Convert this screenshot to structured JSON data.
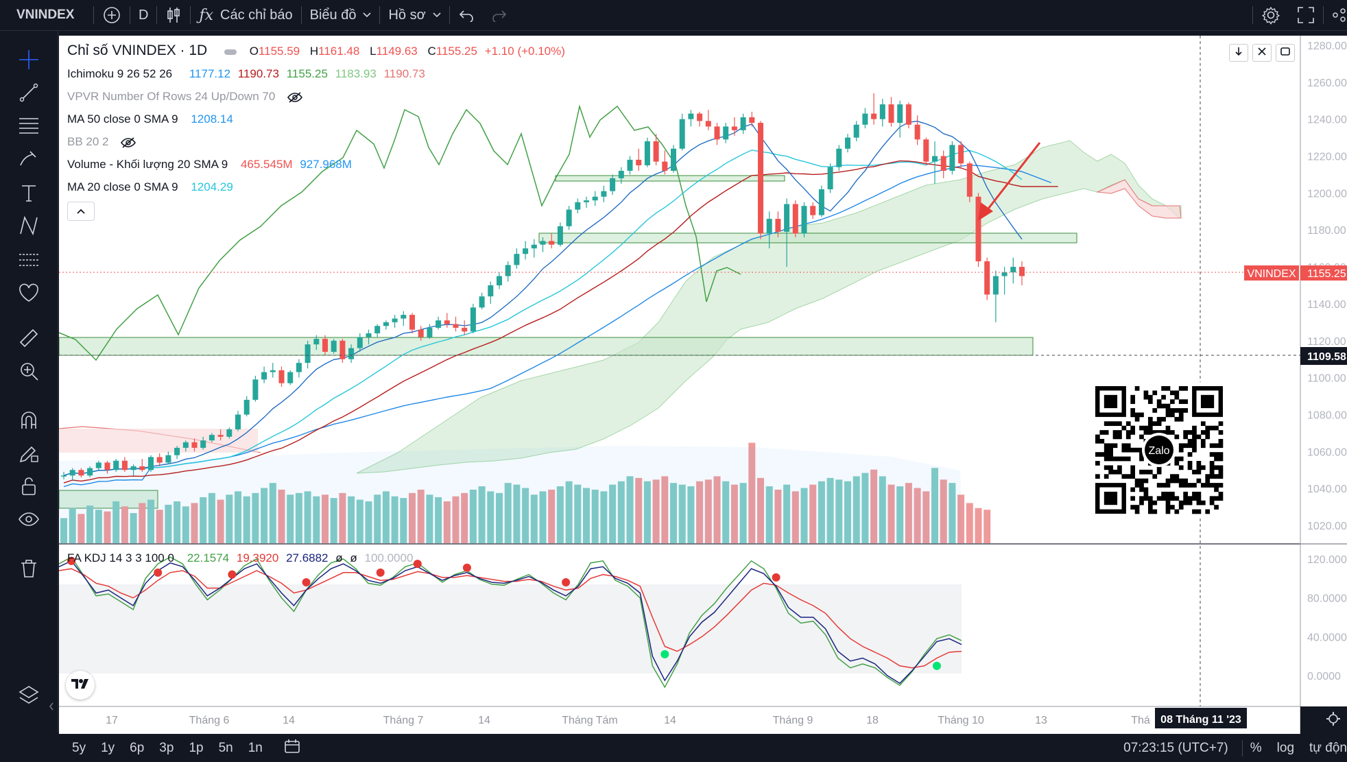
{
  "toolbar": {
    "symbol": "VNINDEX",
    "interval": "D",
    "indicators_label": "Các chỉ báo",
    "chart_label": "Biểu đồ",
    "profile_label": "Hồ sơ"
  },
  "legend": {
    "title": "Chỉ số VNINDEX · 1D",
    "o_label": "O",
    "o": "1155.59",
    "h_label": "H",
    "h": "1161.48",
    "l_label": "L",
    "l": "1149.63",
    "c_label": "C",
    "c": "1155.25",
    "chg": "+1.10 (+0.10%)",
    "ichimoku": {
      "name": "Ichimoku 9 26 52 26",
      "v1": "1177.12",
      "v2": "1190.73",
      "v3": "1155.25",
      "v4": "1183.93",
      "v5": "1190.73"
    },
    "vpvr": "VPVR Number Of Rows 24 Up/Down 70",
    "ma50": {
      "name": "MA 50 close 0 SMA 9",
      "v": "1208.14"
    },
    "bb": "BB 20 2",
    "volume": {
      "name": "Volume - Khối lượng 20 SMA 9",
      "v1": "465.545M",
      "v2": "927.968M"
    },
    "ma20": {
      "name": "MA 20 close 0 SMA 9",
      "v": "1204.29"
    },
    "kdj": {
      "name": "FA KDJ 14 3 3 100 0",
      "v1": "22.1574",
      "v2": "19.3920",
      "v3": "27.6882",
      "v4": "ø",
      "v5": "ø",
      "v6": "100.0000"
    }
  },
  "price_axis": {
    "labels": [
      "1280.00",
      "1260.00",
      "1240.00",
      "1220.00",
      "1200.00",
      "1180.00",
      "1160.00",
      "1140.00",
      "1120.00",
      "1100.00",
      "1080.00",
      "1060.00",
      "1040.00",
      "1020.00"
    ],
    "current_tag": "VNINDEX",
    "current_value": "1155.25",
    "crosshair_value": "1109.58"
  },
  "kdj_axis": {
    "labels": [
      "120.0000",
      "80.0000",
      "40.0000",
      "0.0000"
    ]
  },
  "time_axis": {
    "labels": [
      "17",
      "Tháng 6",
      "14",
      "Tháng 7",
      "14",
      "Tháng Tám",
      "14",
      "Tháng 9",
      "18",
      "Tháng 10",
      "13",
      "Thá"
    ],
    "crosshair_date": "08 Tháng 11 '23"
  },
  "qr": {
    "label": "Zalo"
  },
  "bottom": {
    "ranges": [
      "5y",
      "1y",
      "6p",
      "3p",
      "1p",
      "5n",
      "1n"
    ],
    "clock": "07:23:15 (UTC+7)",
    "pct": "%",
    "log": "log",
    "auto": "tự độn"
  },
  "colors": {
    "up": "#26a69a",
    "down": "#ef5350",
    "ma50": "#2196f3",
    "ma20": "#26c6da",
    "kijun": "#b71c1c",
    "chikou": "#43a047",
    "cloud": "#c8e6c9",
    "kdj_k": "#1a237e",
    "kdj_d": "#e53935",
    "kdj_j": "#43a047"
  },
  "chart_data": {
    "type": "candlestick",
    "y_range": [
      1010,
      1290
    ],
    "candles": [
      [
        1047,
        1049,
        1045,
        1047
      ],
      [
        1047,
        1051,
        1044,
        1050
      ],
      [
        1050,
        1051,
        1046,
        1047
      ],
      [
        1047,
        1052,
        1046,
        1051
      ],
      [
        1051,
        1055,
        1050,
        1054
      ],
      [
        1054,
        1055,
        1048,
        1050
      ],
      [
        1050,
        1056,
        1049,
        1055
      ],
      [
        1055,
        1057,
        1049,
        1050
      ],
      [
        1050,
        1053,
        1047,
        1052
      ],
      [
        1052,
        1056,
        1049,
        1050
      ],
      [
        1050,
        1058,
        1049,
        1057
      ],
      [
        1057,
        1059,
        1052,
        1054
      ],
      [
        1054,
        1060,
        1053,
        1058
      ],
      [
        1058,
        1063,
        1056,
        1062
      ],
      [
        1062,
        1066,
        1060,
        1065
      ],
      [
        1065,
        1067,
        1060,
        1062
      ],
      [
        1062,
        1068,
        1061,
        1066
      ],
      [
        1066,
        1070,
        1065,
        1069
      ],
      [
        1069,
        1072,
        1066,
        1068
      ],
      [
        1068,
        1073,
        1067,
        1072
      ],
      [
        1072,
        1082,
        1071,
        1080
      ],
      [
        1080,
        1090,
        1079,
        1088
      ],
      [
        1088,
        1101,
        1087,
        1099
      ],
      [
        1099,
        1106,
        1097,
        1103
      ],
      [
        1103,
        1108,
        1100,
        1104
      ],
      [
        1104,
        1106,
        1095,
        1097
      ],
      [
        1097,
        1104,
        1096,
        1103
      ],
      [
        1103,
        1110,
        1100,
        1108
      ],
      [
        1108,
        1120,
        1105,
        1118
      ],
      [
        1118,
        1123,
        1115,
        1121
      ],
      [
        1121,
        1123,
        1112,
        1114
      ],
      [
        1114,
        1121,
        1113,
        1120
      ],
      [
        1120,
        1121,
        1108,
        1110
      ],
      [
        1110,
        1118,
        1108,
        1116
      ],
      [
        1116,
        1124,
        1114,
        1122
      ],
      [
        1122,
        1126,
        1118,
        1124
      ],
      [
        1124,
        1129,
        1122,
        1128
      ],
      [
        1128,
        1131,
        1126,
        1130
      ],
      [
        1130,
        1134,
        1127,
        1132
      ],
      [
        1132,
        1136,
        1128,
        1134
      ],
      [
        1134,
        1135,
        1124,
        1126
      ],
      [
        1126,
        1128,
        1120,
        1122
      ],
      [
        1122,
        1129,
        1121,
        1127
      ],
      [
        1127,
        1133,
        1126,
        1131
      ],
      [
        1131,
        1135,
        1127,
        1129
      ],
      [
        1129,
        1133,
        1125,
        1127
      ],
      [
        1127,
        1131,
        1123,
        1125
      ],
      [
        1125,
        1140,
        1124,
        1138
      ],
      [
        1138,
        1146,
        1137,
        1144
      ],
      [
        1144,
        1152,
        1140,
        1150
      ],
      [
        1150,
        1157,
        1148,
        1155
      ],
      [
        1155,
        1163,
        1152,
        1161
      ],
      [
        1161,
        1170,
        1159,
        1167
      ],
      [
        1167,
        1174,
        1164,
        1170
      ],
      [
        1170,
        1175,
        1165,
        1172
      ],
      [
        1172,
        1176,
        1168,
        1174
      ],
      [
        1174,
        1178,
        1170,
        1172
      ],
      [
        1172,
        1184,
        1171,
        1182
      ],
      [
        1182,
        1193,
        1180,
        1191
      ],
      [
        1191,
        1197,
        1189,
        1195
      ],
      [
        1195,
        1198,
        1192,
        1196
      ],
      [
        1196,
        1201,
        1193,
        1198
      ],
      [
        1198,
        1204,
        1195,
        1201
      ],
      [
        1201,
        1210,
        1199,
        1208
      ],
      [
        1208,
        1214,
        1205,
        1212
      ],
      [
        1212,
        1220,
        1210,
        1218
      ],
      [
        1218,
        1224,
        1212,
        1215
      ],
      [
        1215,
        1230,
        1214,
        1228
      ],
      [
        1228,
        1232,
        1215,
        1217
      ],
      [
        1217,
        1223,
        1210,
        1212
      ],
      [
        1212,
        1226,
        1211,
        1224
      ],
      [
        1224,
        1243,
        1223,
        1240
      ],
      [
        1240,
        1245,
        1236,
        1243
      ],
      [
        1243,
        1244,
        1236,
        1239
      ],
      [
        1239,
        1245,
        1234,
        1236
      ],
      [
        1236,
        1238,
        1226,
        1229
      ],
      [
        1229,
        1238,
        1227,
        1236
      ],
      [
        1236,
        1241,
        1231,
        1234
      ],
      [
        1234,
        1243,
        1232,
        1241
      ],
      [
        1241,
        1244,
        1236,
        1238
      ],
      [
        1238,
        1239,
        1175,
        1178
      ],
      [
        1178,
        1190,
        1170,
        1186
      ],
      [
        1186,
        1190,
        1176,
        1179
      ],
      [
        1179,
        1197,
        1160,
        1194
      ],
      [
        1194,
        1196,
        1176,
        1178
      ],
      [
        1178,
        1195,
        1176,
        1193
      ],
      [
        1193,
        1195,
        1186,
        1188
      ],
      [
        1188,
        1204,
        1187,
        1202
      ],
      [
        1202,
        1216,
        1200,
        1214
      ],
      [
        1214,
        1226,
        1212,
        1224
      ],
      [
        1224,
        1232,
        1222,
        1230
      ],
      [
        1230,
        1239,
        1228,
        1237
      ],
      [
        1237,
        1246,
        1235,
        1243
      ],
      [
        1243,
        1254,
        1237,
        1240
      ],
      [
        1240,
        1251,
        1236,
        1248
      ],
      [
        1248,
        1252,
        1236,
        1238
      ],
      [
        1238,
        1250,
        1230,
        1248
      ],
      [
        1248,
        1249,
        1235,
        1237
      ],
      [
        1237,
        1242,
        1226,
        1229
      ],
      [
        1229,
        1230,
        1215,
        1217
      ],
      [
        1217,
        1228,
        1205,
        1220
      ],
      [
        1220,
        1223,
        1208,
        1212
      ],
      [
        1212,
        1228,
        1210,
        1226
      ],
      [
        1226,
        1228,
        1214,
        1216
      ],
      [
        1216,
        1217,
        1195,
        1198
      ],
      [
        1198,
        1200,
        1160,
        1163
      ],
      [
        1163,
        1165,
        1142,
        1145
      ],
      [
        1145,
        1158,
        1130,
        1155
      ],
      [
        1155,
        1160,
        1145,
        1157
      ],
      [
        1157,
        1165,
        1151,
        1160
      ],
      [
        1160,
        1163,
        1150,
        1155
      ]
    ],
    "volume": [
      30,
      42,
      35,
      45,
      40,
      38,
      50,
      44,
      36,
      48,
      52,
      40,
      46,
      50,
      44,
      48,
      55,
      60,
      52,
      58,
      62,
      56,
      60,
      66,
      72,
      64,
      58,
      60,
      62,
      56,
      58,
      54,
      60,
      56,
      52,
      50,
      58,
      62,
      56,
      54,
      60,
      64,
      58,
      55,
      50,
      56,
      60,
      64,
      68,
      62,
      60,
      72,
      70,
      66,
      58,
      62,
      64,
      68,
      74,
      70,
      66,
      64,
      62,
      70,
      74,
      80,
      78,
      74,
      76,
      80,
      72,
      70,
      68,
      74,
      76,
      80,
      74,
      70,
      72,
      120,
      78,
      68,
      64,
      70,
      62,
      66,
      70,
      74,
      78,
      76,
      74,
      80,
      84,
      88,
      80,
      70,
      68,
      72,
      66,
      62,
      90,
      76,
      72,
      58,
      48,
      42,
      40
    ],
    "kdj_k": [
      112,
      118,
      102,
      85,
      88,
      80,
      72,
      95,
      108,
      116,
      112,
      98,
      82,
      90,
      100,
      110,
      115,
      100,
      85,
      72,
      88,
      100,
      110,
      115,
      108,
      98,
      95,
      100,
      108,
      112,
      105,
      98,
      103,
      106,
      100,
      96,
      95,
      98,
      102,
      96,
      88,
      82,
      92,
      110,
      112,
      100,
      95,
      85,
      20,
      -5,
      15,
      40,
      55,
      65,
      80,
      95,
      110,
      105,
      92,
      70,
      60,
      60,
      48,
      25,
      15,
      18,
      12,
      0,
      -8,
      5,
      20,
      35,
      38,
      32
    ],
    "kdj_d": [
      108,
      110,
      104,
      95,
      92,
      85,
      80,
      88,
      98,
      106,
      108,
      102,
      90,
      90,
      96,
      102,
      108,
      102,
      95,
      85,
      88,
      94,
      100,
      106,
      106,
      102,
      98,
      99,
      103,
      107,
      105,
      101,
      101,
      103,
      101,
      99,
      97,
      97,
      99,
      97,
      92,
      88,
      90,
      100,
      104,
      102,
      98,
      92,
      60,
      30,
      25,
      32,
      40,
      50,
      62,
      75,
      88,
      95,
      93,
      85,
      78,
      72,
      64,
      50,
      38,
      30,
      24,
      18,
      10,
      8,
      10,
      18,
      24,
      25
    ],
    "kdj_j": [
      115,
      122,
      103,
      82,
      84,
      76,
      68,
      100,
      115,
      122,
      115,
      95,
      78,
      88,
      100,
      113,
      120,
      98,
      80,
      66,
      88,
      104,
      116,
      120,
      110,
      95,
      93,
      101,
      112,
      116,
      106,
      96,
      104,
      108,
      99,
      94,
      93,
      99,
      104,
      95,
      85,
      78,
      94,
      116,
      118,
      98,
      92,
      80,
      10,
      -12,
      12,
      44,
      62,
      74,
      90,
      104,
      118,
      110,
      90,
      64,
      54,
      56,
      42,
      18,
      8,
      12,
      8,
      -2,
      -10,
      4,
      22,
      38,
      42,
      36
    ]
  }
}
